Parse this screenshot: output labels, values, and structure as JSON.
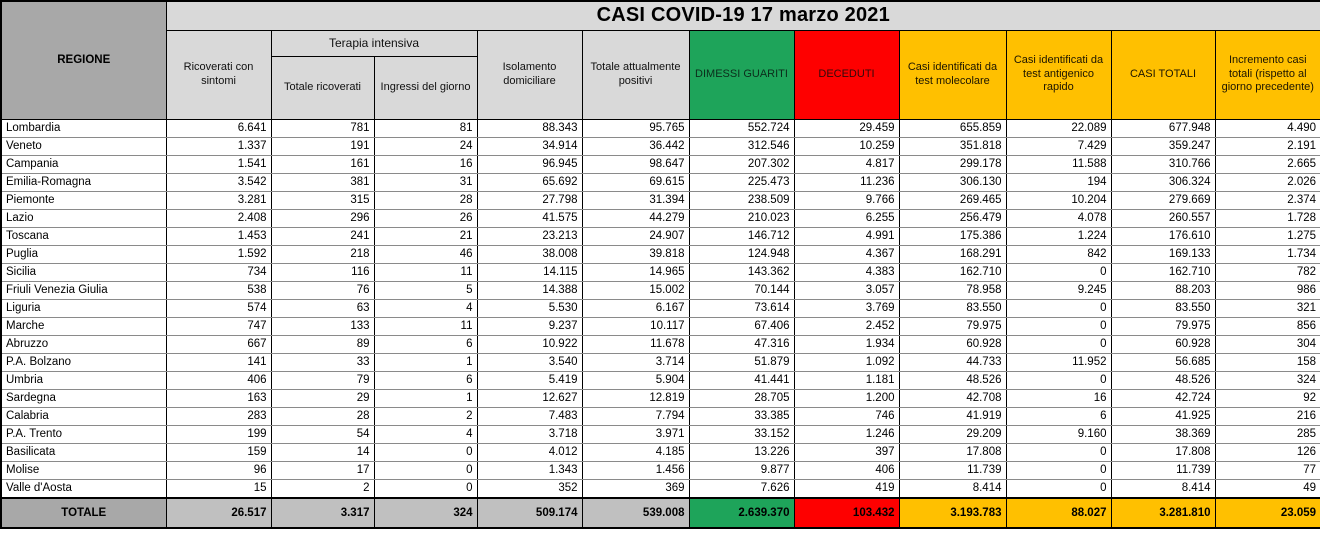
{
  "header": {
    "title": "CASI COVID-19 17 marzo 2021",
    "region_column": "REGIONE",
    "group_terapia_intensiva": "Terapia intensiva",
    "columns": [
      "Ricoverati con sintomi",
      "Totale ricoverati",
      "Ingressi del giorno",
      "Isolamento domiciliare",
      "Totale attualmente positivi",
      "DIMESSI GUARITI",
      "DECEDUTI",
      "Casi identificati da test molecolare",
      "Casi identificati da test antigenico rapido",
      "CASI TOTALI",
      "Incremento casi totali (rispetto al giorno precedente)"
    ]
  },
  "rows": [
    [
      "Lombardia",
      "6.641",
      "781",
      "81",
      "88.343",
      "95.765",
      "552.724",
      "29.459",
      "655.859",
      "22.089",
      "677.948",
      "4.490"
    ],
    [
      "Veneto",
      "1.337",
      "191",
      "24",
      "34.914",
      "36.442",
      "312.546",
      "10.259",
      "351.818",
      "7.429",
      "359.247",
      "2.191"
    ],
    [
      "Campania",
      "1.541",
      "161",
      "16",
      "96.945",
      "98.647",
      "207.302",
      "4.817",
      "299.178",
      "11.588",
      "310.766",
      "2.665"
    ],
    [
      "Emilia-Romagna",
      "3.542",
      "381",
      "31",
      "65.692",
      "69.615",
      "225.473",
      "11.236",
      "306.130",
      "194",
      "306.324",
      "2.026"
    ],
    [
      "Piemonte",
      "3.281",
      "315",
      "28",
      "27.798",
      "31.394",
      "238.509",
      "9.766",
      "269.465",
      "10.204",
      "279.669",
      "2.374"
    ],
    [
      "Lazio",
      "2.408",
      "296",
      "26",
      "41.575",
      "44.279",
      "210.023",
      "6.255",
      "256.479",
      "4.078",
      "260.557",
      "1.728"
    ],
    [
      "Toscana",
      "1.453",
      "241",
      "21",
      "23.213",
      "24.907",
      "146.712",
      "4.991",
      "175.386",
      "1.224",
      "176.610",
      "1.275"
    ],
    [
      "Puglia",
      "1.592",
      "218",
      "46",
      "38.008",
      "39.818",
      "124.948",
      "4.367",
      "168.291",
      "842",
      "169.133",
      "1.734"
    ],
    [
      "Sicilia",
      "734",
      "116",
      "11",
      "14.115",
      "14.965",
      "143.362",
      "4.383",
      "162.710",
      "0",
      "162.710",
      "782"
    ],
    [
      "Friuli Venezia Giulia",
      "538",
      "76",
      "5",
      "14.388",
      "15.002",
      "70.144",
      "3.057",
      "78.958",
      "9.245",
      "88.203",
      "986"
    ],
    [
      "Liguria",
      "574",
      "63",
      "4",
      "5.530",
      "6.167",
      "73.614",
      "3.769",
      "83.550",
      "0",
      "83.550",
      "321"
    ],
    [
      "Marche",
      "747",
      "133",
      "11",
      "9.237",
      "10.117",
      "67.406",
      "2.452",
      "79.975",
      "0",
      "79.975",
      "856"
    ],
    [
      "Abruzzo",
      "667",
      "89",
      "6",
      "10.922",
      "11.678",
      "47.316",
      "1.934",
      "60.928",
      "0",
      "60.928",
      "304"
    ],
    [
      "P.A. Bolzano",
      "141",
      "33",
      "1",
      "3.540",
      "3.714",
      "51.879",
      "1.092",
      "44.733",
      "11.952",
      "56.685",
      "158"
    ],
    [
      "Umbria",
      "406",
      "79",
      "6",
      "5.419",
      "5.904",
      "41.441",
      "1.181",
      "48.526",
      "0",
      "48.526",
      "324"
    ],
    [
      "Sardegna",
      "163",
      "29",
      "1",
      "12.627",
      "12.819",
      "28.705",
      "1.200",
      "42.708",
      "16",
      "42.724",
      "92"
    ],
    [
      "Calabria",
      "283",
      "28",
      "2",
      "7.483",
      "7.794",
      "33.385",
      "746",
      "41.919",
      "6",
      "41.925",
      "216"
    ],
    [
      "P.A. Trento",
      "199",
      "54",
      "4",
      "3.718",
      "3.971",
      "33.152",
      "1.246",
      "29.209",
      "9.160",
      "38.369",
      "285"
    ],
    [
      "Basilicata",
      "159",
      "14",
      "0",
      "4.012",
      "4.185",
      "13.226",
      "397",
      "17.808",
      "0",
      "17.808",
      "126"
    ],
    [
      "Molise",
      "96",
      "17",
      "0",
      "1.343",
      "1.456",
      "9.877",
      "406",
      "11.739",
      "0",
      "11.739",
      "77"
    ],
    [
      "Valle d'Aosta",
      "15",
      "2",
      "0",
      "352",
      "369",
      "7.626",
      "419",
      "8.414",
      "0",
      "8.414",
      "49"
    ]
  ],
  "totals": [
    "TOTALE",
    "26.517",
    "3.317",
    "324",
    "509.174",
    "539.008",
    "2.639.370",
    "103.432",
    "3.193.783",
    "88.027",
    "3.281.810",
    "23.059"
  ],
  "colors": {
    "green": "#1ea45a",
    "red": "#fe0000",
    "yellow": "#ffc000",
    "header_gray": "#a8a8a8",
    "subheader_gray": "#d9d9d9",
    "totals_gray": "#c0c0c0",
    "grid_line": "#8a8a8a"
  }
}
